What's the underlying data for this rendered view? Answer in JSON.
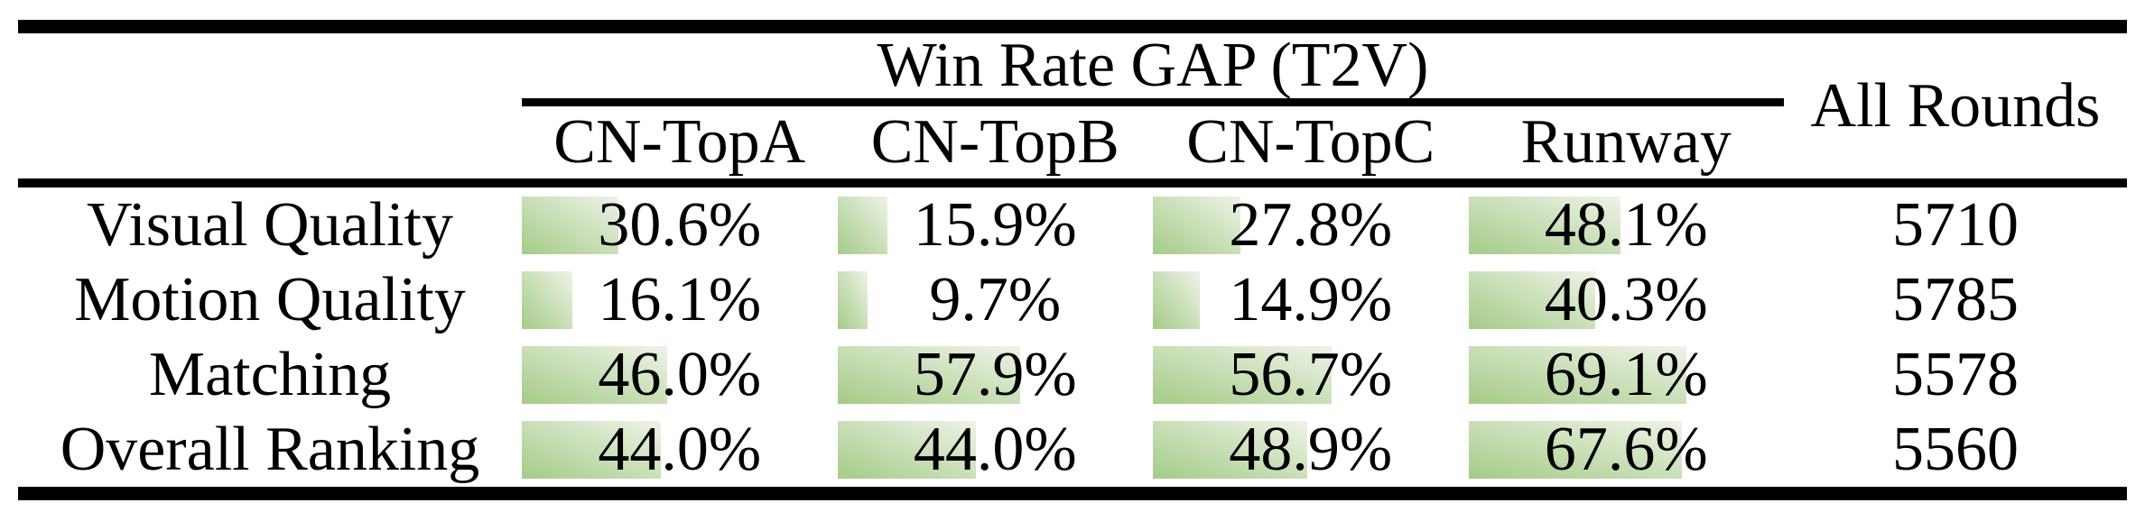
{
  "table": {
    "group_header": "Win Rate GAP (T2V)",
    "all_rounds_label": "All Rounds",
    "columns": [
      "CN-TopA",
      "CN-TopB",
      "CN-TopC",
      "Runway"
    ],
    "rows": [
      {
        "label": "Visual Quality",
        "cells": [
          {
            "text": "30.6%",
            "value": 30.6
          },
          {
            "text": "15.9%",
            "value": 15.9
          },
          {
            "text": "27.8%",
            "value": 27.8
          },
          {
            "text": "48.1%",
            "value": 48.1
          }
        ],
        "all_rounds": "5710"
      },
      {
        "label": "Motion Quality",
        "cells": [
          {
            "text": "16.1%",
            "value": 16.1
          },
          {
            "text": "9.7%",
            "value": 9.7
          },
          {
            "text": "14.9%",
            "value": 14.9
          },
          {
            "text": "40.3%",
            "value": 40.3
          }
        ],
        "all_rounds": "5785"
      },
      {
        "label": "Matching",
        "cells": [
          {
            "text": "46.0%",
            "value": 46.0
          },
          {
            "text": "57.9%",
            "value": 57.9
          },
          {
            "text": "56.7%",
            "value": 56.7
          },
          {
            "text": "69.1%",
            "value": 69.1
          }
        ],
        "all_rounds": "5578"
      },
      {
        "label": "Overall Ranking",
        "cells": [
          {
            "text": "44.0%",
            "value": 44.0
          },
          {
            "text": "44.0%",
            "value": 44.0
          },
          {
            "text": "48.9%",
            "value": 48.9
          },
          {
            "text": "67.6%",
            "value": 67.6
          }
        ],
        "all_rounds": "5560"
      }
    ]
  },
  "colors": {
    "bar_gradient_start": "#a4cb87",
    "bar_gradient_end": "#eff3e8",
    "rule": "#000000",
    "text": "#000000",
    "background": "#ffffff"
  }
}
